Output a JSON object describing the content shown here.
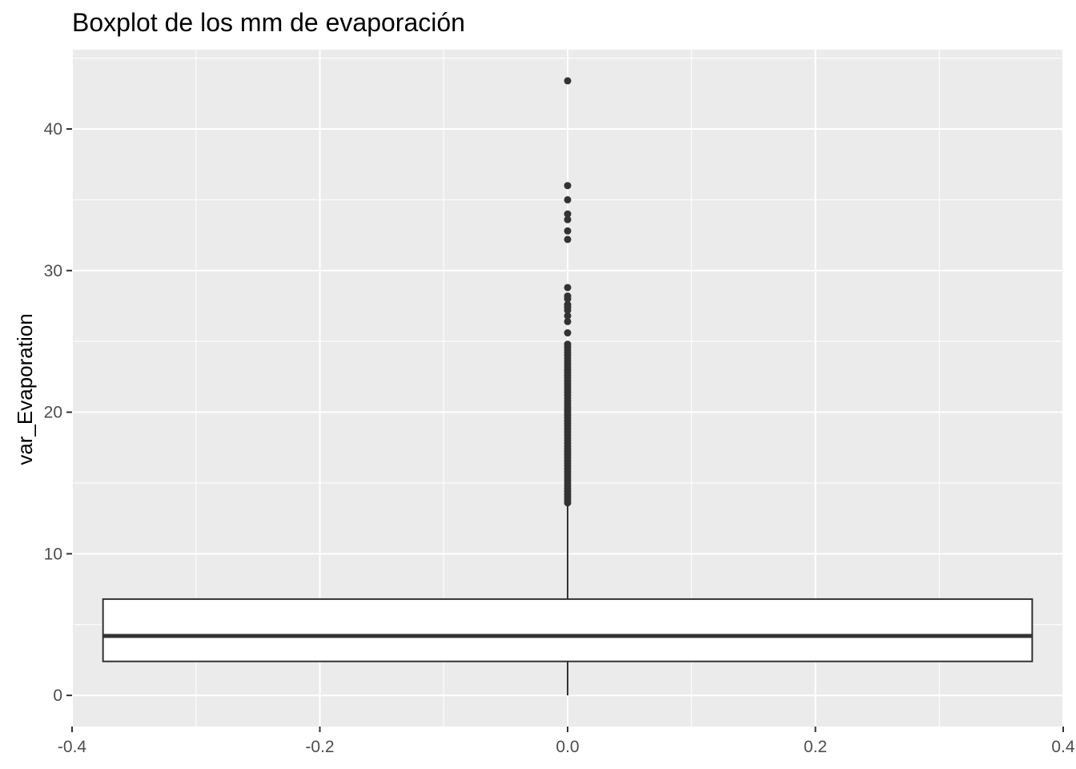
{
  "chart_data": {
    "type": "boxplot",
    "title": "Boxplot de los mm de evaporación",
    "xlabel": "",
    "ylabel": "var_Evaporation",
    "xlim": [
      -0.4,
      0.4
    ],
    "ylim": [
      -2.2,
      45.6
    ],
    "x_ticks": [
      -0.4,
      -0.2,
      0.0,
      0.2,
      0.4
    ],
    "x_tick_labels": [
      "-0.4",
      "-0.2",
      "0.0",
      "0.2",
      "0.4"
    ],
    "y_ticks": [
      0,
      10,
      20,
      30,
      40
    ],
    "y_tick_labels": [
      "0",
      "10",
      "20",
      "30",
      "40"
    ],
    "grid": true,
    "box": {
      "x": 0.0,
      "x_from": -0.375,
      "x_to": 0.375,
      "whisker_low": 0.0,
      "q1": 2.4,
      "median": 4.2,
      "q3": 6.8,
      "whisker_high": 13.6
    },
    "outliers": [
      13.6,
      13.8,
      14.0,
      14.2,
      14.4,
      14.6,
      14.8,
      15.0,
      15.2,
      15.4,
      15.6,
      15.8,
      16.0,
      16.2,
      16.4,
      16.6,
      16.8,
      17.0,
      17.2,
      17.4,
      17.6,
      17.8,
      18.0,
      18.2,
      18.4,
      18.6,
      18.8,
      19.0,
      19.2,
      19.4,
      19.6,
      19.8,
      20.0,
      20.2,
      20.4,
      20.6,
      20.8,
      21.0,
      21.2,
      21.4,
      21.6,
      21.8,
      22.0,
      22.2,
      22.4,
      22.6,
      22.8,
      23.0,
      23.2,
      23.4,
      23.6,
      23.8,
      24.0,
      24.2,
      24.4,
      24.6,
      24.8,
      25.6,
      26.4,
      26.8,
      27.2,
      27.4,
      27.6,
      28.0,
      28.2,
      28.8,
      32.2,
      32.8,
      33.6,
      34.0,
      35.0,
      36.0,
      43.4
    ]
  }
}
